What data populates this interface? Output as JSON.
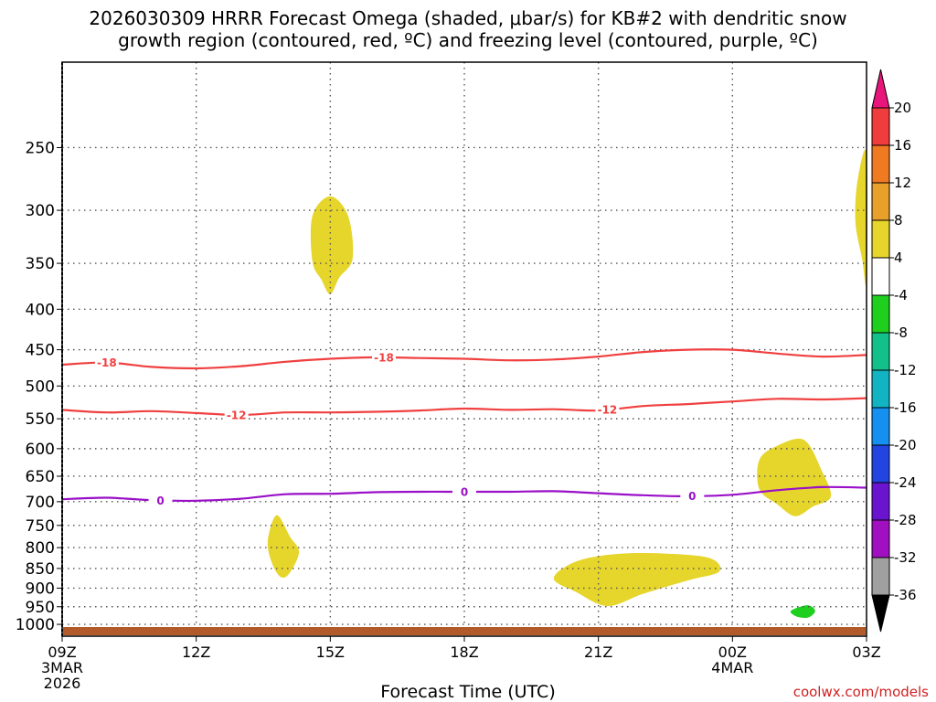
{
  "chart_data": {
    "type": "heatmap",
    "title_line1": "2026030309 HRRR Forecast Omega (shaded, μbar/s) for KB#2 with dendritic snow",
    "title_line2": "growth region (contoured, red, ºC) and freezing level (contoured, purple, ºC)",
    "xlabel": "Forecast Time (UTC)",
    "credit": "coolwx.com/models",
    "x_ticks": [
      {
        "label": "09Z",
        "sub1": "3MAR",
        "sub2": "2026",
        "hour": 0
      },
      {
        "label": "12Z",
        "sub1": "",
        "sub2": "",
        "hour": 3
      },
      {
        "label": "15Z",
        "sub1": "",
        "sub2": "",
        "hour": 6
      },
      {
        "label": "18Z",
        "sub1": "",
        "sub2": "",
        "hour": 9
      },
      {
        "label": "21Z",
        "sub1": "",
        "sub2": "",
        "hour": 12
      },
      {
        "label": "00Z",
        "sub1": "4MAR",
        "sub2": "",
        "hour": 15
      },
      {
        "label": "03Z",
        "sub1": "",
        "sub2": "",
        "hour": 18
      }
    ],
    "xlim_hours": [
      0,
      18
    ],
    "y_axis": "pressure (hPa), log scale, inverted",
    "ylim": [
      1035,
      195
    ],
    "y_ticks": [
      250,
      300,
      350,
      400,
      450,
      500,
      550,
      600,
      650,
      700,
      750,
      800,
      850,
      900,
      950,
      1000
    ],
    "grid": true,
    "colorbar": {
      "tick_labels": [
        "20",
        "16",
        "12",
        "8",
        "4",
        "-4",
        "-8",
        "-12",
        "-16",
        "-20",
        "-24",
        "-28",
        "-32",
        "-36"
      ],
      "colors": [
        "#e8157a",
        "#f03c3c",
        "#f07a22",
        "#e8a02a",
        "#e6d52b",
        "#ffffff",
        "#1ecf1e",
        "#14c08a",
        "#12b4c4",
        "#1690f0",
        "#2244e0",
        "#6a14d0",
        "#a010c0",
        "#a0a0a0",
        "#000000"
      ]
    },
    "contours": [
      {
        "name": "-18",
        "color": "#f04040",
        "points": [
          [
            0,
            470
          ],
          [
            1,
            467
          ],
          [
            2,
            473
          ],
          [
            3,
            475
          ],
          [
            4,
            472
          ],
          [
            5,
            466
          ],
          [
            6,
            462
          ],
          [
            7,
            460
          ],
          [
            8,
            461
          ],
          [
            9,
            462
          ],
          [
            10,
            464
          ],
          [
            11,
            463
          ],
          [
            12,
            459
          ],
          [
            13,
            453
          ],
          [
            14,
            450
          ],
          [
            15,
            450
          ],
          [
            16,
            455
          ],
          [
            17,
            459
          ],
          [
            18,
            457
          ]
        ],
        "label_hours": [
          1.0,
          7.2
        ]
      },
      {
        "name": "-12",
        "color": "#f04040",
        "points": [
          [
            0,
            536
          ],
          [
            1,
            540
          ],
          [
            2,
            538
          ],
          [
            3,
            541
          ],
          [
            4,
            544
          ],
          [
            5,
            540
          ],
          [
            6,
            540
          ],
          [
            7,
            539
          ],
          [
            8,
            537
          ],
          [
            9,
            534
          ],
          [
            10,
            536
          ],
          [
            11,
            535
          ],
          [
            12,
            537
          ],
          [
            13,
            530
          ],
          [
            14,
            527
          ],
          [
            15,
            523
          ],
          [
            16,
            519
          ],
          [
            17,
            520
          ],
          [
            18,
            518
          ]
        ],
        "label_hours": [
          3.9,
          12.2
        ]
      },
      {
        "name": "0",
        "color": "#9a10c8",
        "points": [
          [
            0,
            695
          ],
          [
            1,
            692
          ],
          [
            2,
            697
          ],
          [
            3,
            698
          ],
          [
            4,
            694
          ],
          [
            5,
            685
          ],
          [
            6,
            684
          ],
          [
            7,
            681
          ],
          [
            8,
            680
          ],
          [
            9,
            680
          ],
          [
            10,
            680
          ],
          [
            11,
            679
          ],
          [
            12,
            683
          ],
          [
            13,
            687
          ],
          [
            14,
            689
          ],
          [
            15,
            686
          ],
          [
            16,
            677
          ],
          [
            17,
            671
          ],
          [
            18,
            672
          ]
        ],
        "label_hours": [
          2.2,
          9.0,
          14.1
        ]
      }
    ],
    "shaded_regions": [
      {
        "value_class": "4 to 8",
        "color": "#e6d52b",
        "points": [
          [
            5.6,
            305
          ],
          [
            6.0,
            288
          ],
          [
            6.4,
            305
          ],
          [
            6.5,
            345
          ],
          [
            6.2,
            365
          ],
          [
            6.0,
            383
          ],
          [
            5.8,
            367
          ],
          [
            5.6,
            348
          ]
        ]
      },
      {
        "value_class": "4 to 8",
        "color": "#e6d52b",
        "points": [
          [
            4.6,
            785
          ],
          [
            4.8,
            728
          ],
          [
            5.1,
            775
          ],
          [
            5.3,
            810
          ],
          [
            5.1,
            860
          ],
          [
            4.9,
            872
          ],
          [
            4.7,
            838
          ]
        ]
      },
      {
        "value_class": "4 to 8",
        "color": "#e6d52b",
        "points": [
          [
            11.0,
            875
          ],
          [
            11.5,
            833
          ],
          [
            12.4,
            815
          ],
          [
            13.5,
            814
          ],
          [
            14.5,
            825
          ],
          [
            14.7,
            858
          ],
          [
            14.0,
            880
          ],
          [
            13.0,
            915
          ],
          [
            12.2,
            948
          ],
          [
            11.5,
            910
          ]
        ]
      },
      {
        "value_class": "4 to 8",
        "color": "#e6d52b",
        "points": [
          [
            15.6,
            620
          ],
          [
            16.0,
            595
          ],
          [
            16.6,
            585
          ],
          [
            17.0,
            640
          ],
          [
            17.2,
            690
          ],
          [
            16.8,
            710
          ],
          [
            16.4,
            730
          ],
          [
            16.0,
            705
          ],
          [
            15.6,
            675
          ]
        ]
      },
      {
        "value_class": "4 to 8",
        "color": "#e6d52b",
        "points": [
          [
            17.8,
            275
          ],
          [
            18.0,
            255
          ],
          [
            18.0,
            368
          ],
          [
            17.9,
            345
          ],
          [
            17.75,
            310
          ]
        ]
      },
      {
        "value_class": "-4 to -8",
        "color": "#1ecf1e",
        "points": [
          [
            16.4,
            955
          ],
          [
            16.7,
            946
          ],
          [
            16.85,
            962
          ],
          [
            16.7,
            980
          ],
          [
            16.45,
            978
          ],
          [
            16.3,
            965
          ]
        ]
      }
    ]
  }
}
